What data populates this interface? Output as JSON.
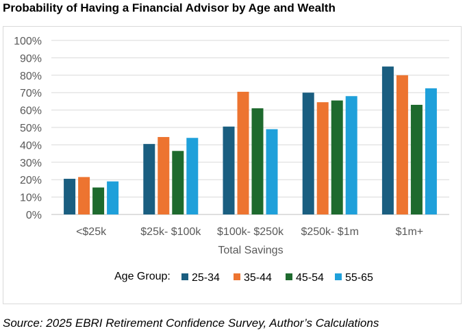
{
  "title": "Probability of Having a Financial Advisor by Age and Wealth",
  "source": "Source: 2025 EBRI Retirement Confidence Survey, Author’s Calculations",
  "chart_data": {
    "type": "bar",
    "categories": [
      "<$25k",
      "$25k- $100k",
      "$100k- $250k",
      "$250k- $1m",
      "$1m+"
    ],
    "series": [
      {
        "name": "25-34",
        "color": "#1a5e80",
        "values": [
          20.5,
          40.5,
          50.5,
          70,
          85
        ]
      },
      {
        "name": "35-44",
        "color": "#ed7430",
        "values": [
          21.5,
          44.5,
          70.5,
          64.5,
          80
        ]
      },
      {
        "name": "45-54",
        "color": "#1e6a2e",
        "values": [
          15.5,
          36.5,
          61,
          65.5,
          63
        ]
      },
      {
        "name": "55-65",
        "color": "#1fa0da",
        "values": [
          19,
          44,
          49,
          68,
          72.5
        ]
      }
    ],
    "xlabel": "Total Savings",
    "ylabel": "",
    "ylim": [
      0,
      100
    ],
    "yticks": [
      "0%",
      "10%",
      "20%",
      "30%",
      "40%",
      "50%",
      "60%",
      "70%",
      "80%",
      "90%",
      "100%"
    ],
    "grid": true,
    "legend_title": "Age Group:",
    "legend_position": "bottom"
  }
}
